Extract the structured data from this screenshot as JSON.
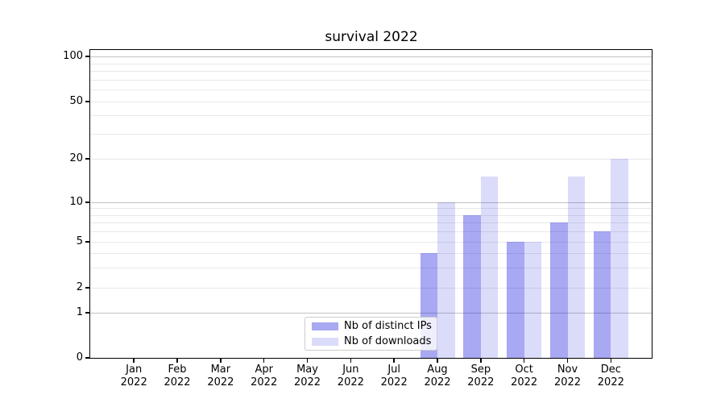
{
  "chart_data": {
    "type": "bar",
    "title": "survival 2022",
    "categories": [
      "Jan",
      "Feb",
      "Mar",
      "Apr",
      "May",
      "Jun",
      "Jul",
      "Aug",
      "Sep",
      "Oct",
      "Nov",
      "Dec"
    ],
    "x_tick_second_line": "2022",
    "series": [
      {
        "name": "Nb of distinct IPs",
        "color": "rgba(0,0,220,0.34)",
        "values": [
          0,
          0,
          0,
          0,
          0,
          0,
          0,
          4,
          8,
          5,
          7,
          6
        ]
      },
      {
        "name": "Nb of downloads",
        "color": "rgba(0,0,220,0.14)",
        "values": [
          0,
          0,
          0,
          0,
          0,
          0,
          0,
          10,
          15,
          5,
          15,
          20
        ]
      }
    ],
    "y_axis": {
      "scale": "symlog",
      "tick_labels": [
        "0",
        "1",
        "2",
        "5",
        "10",
        "20",
        "50",
        "100"
      ],
      "tick_values": [
        0,
        1,
        2,
        5,
        10,
        20,
        50,
        100
      ],
      "major_grid_values": [
        1,
        10,
        100
      ],
      "minor_grid_values": [
        2,
        3,
        4,
        5,
        6,
        7,
        8,
        9,
        20,
        30,
        40,
        50,
        60,
        70,
        80,
        90
      ],
      "range": [
        0,
        110
      ]
    },
    "legend": {
      "entries": [
        "Nb of distinct IPs",
        "Nb of downloads"
      ],
      "position": "lower center"
    },
    "grid": true,
    "colors": {
      "major_grid": "#c3c3c3",
      "minor_grid": "#e8e8e8",
      "spine": "#000000",
      "background": "#ffffff"
    }
  }
}
